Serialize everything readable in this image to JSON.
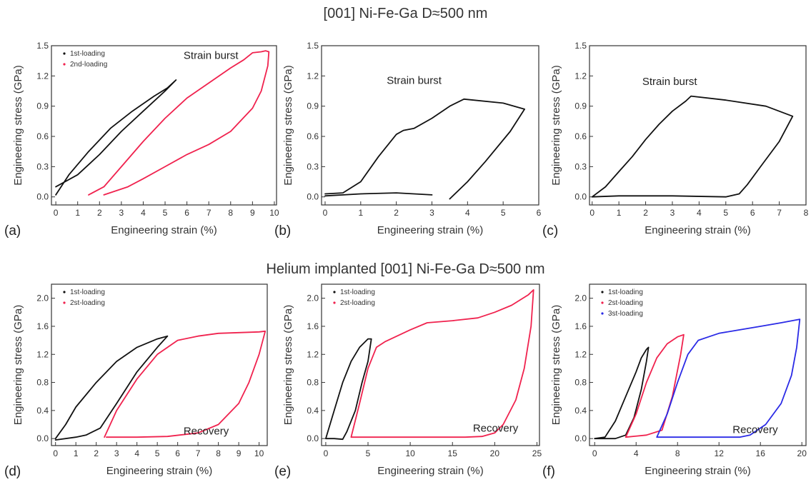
{
  "figure": {
    "top_title": "[001] Ni-Fe-Ga   D≈500 nm",
    "bottom_title": "Helium implanted [001] Ni-Fe-Ga  D≈500 nm"
  },
  "colors": {
    "black": "#111111",
    "red": "#f0224e",
    "blue": "#2a2ae6",
    "axis": "#333333"
  },
  "chart_data": [
    {
      "type": "line",
      "panel": "(a)",
      "xlabel": "Engineering strain (%)",
      "ylabel": "Engineering stress (GPa)",
      "xlim": [
        -0.2,
        10.1
      ],
      "ylim": [
        -0.08,
        1.5
      ],
      "xticks": [
        "0",
        "1",
        "2",
        "3",
        "4",
        "5",
        "6",
        "7",
        "8",
        "9",
        "10"
      ],
      "yticks": [
        "0.0",
        "0.3",
        "0.6",
        "0.9",
        "1.2",
        "1.5"
      ],
      "legend": [
        {
          "label": "1st-loading",
          "color": "#111111"
        },
        {
          "label": "2nd-loading",
          "color": "#f0224e"
        }
      ],
      "annotations": [
        {
          "text": "Strain burst",
          "x": 7.1,
          "y": 1.37
        }
      ],
      "series": [
        {
          "name": "1st-loading",
          "color": "#111111",
          "points": [
            [
              0,
              0.02
            ],
            [
              0.6,
              0.22
            ],
            [
              1.5,
              0.45
            ],
            [
              2.5,
              0.68
            ],
            [
              3.5,
              0.85
            ],
            [
              4.5,
              1.0
            ],
            [
              5.1,
              1.08
            ],
            [
              5.5,
              1.16
            ],
            [
              5.0,
              1.05
            ],
            [
              4.0,
              0.85
            ],
            [
              3.0,
              0.65
            ],
            [
              2.0,
              0.42
            ],
            [
              1.0,
              0.22
            ],
            [
              0,
              0.1
            ]
          ]
        },
        {
          "name": "2nd-loading",
          "color": "#f0224e",
          "points": [
            [
              1.5,
              0.02
            ],
            [
              2.2,
              0.1
            ],
            [
              3.0,
              0.3
            ],
            [
              4.0,
              0.55
            ],
            [
              5.0,
              0.78
            ],
            [
              6.0,
              0.98
            ],
            [
              7.0,
              1.13
            ],
            [
              8.0,
              1.28
            ],
            [
              8.6,
              1.36
            ],
            [
              9.0,
              1.43
            ],
            [
              9.4,
              1.44
            ],
            [
              9.6,
              1.45
            ],
            [
              9.75,
              1.44
            ],
            [
              9.7,
              1.3
            ],
            [
              9.4,
              1.05
            ],
            [
              9.0,
              0.88
            ],
            [
              8.0,
              0.65
            ],
            [
              7.0,
              0.52
            ],
            [
              6.0,
              0.42
            ],
            [
              5.0,
              0.3
            ],
            [
              4.0,
              0.18
            ],
            [
              3.3,
              0.1
            ],
            [
              2.2,
              0.02
            ]
          ]
        }
      ]
    },
    {
      "type": "line",
      "panel": "(b)",
      "xlabel": "Engineering strain (%)",
      "ylabel": "Engineering stress (GPa)",
      "xlim": [
        -0.1,
        6.0
      ],
      "ylim": [
        -0.08,
        1.5
      ],
      "xticks": [
        "0",
        "1",
        "2",
        "3",
        "4",
        "5",
        "6"
      ],
      "yticks": [
        "0.0",
        "0.3",
        "0.6",
        "0.9",
        "1.2",
        "1.5"
      ],
      "legend": [],
      "annotations": [
        {
          "text": "Strain burst",
          "x": 2.5,
          "y": 1.12
        }
      ],
      "series": [
        {
          "name": "",
          "color": "#111111",
          "points": [
            [
              0,
              0.03
            ],
            [
              0.5,
              0.04
            ],
            [
              1.0,
              0.15
            ],
            [
              1.5,
              0.4
            ],
            [
              2.0,
              0.62
            ],
            [
              2.2,
              0.66
            ],
            [
              2.5,
              0.68
            ],
            [
              3.0,
              0.78
            ],
            [
              3.5,
              0.9
            ],
            [
              3.9,
              0.97
            ],
            [
              5.0,
              0.93
            ],
            [
              5.6,
              0.87
            ],
            [
              5.2,
              0.65
            ],
            [
              4.5,
              0.35
            ],
            [
              4.0,
              0.15
            ],
            [
              3.5,
              -0.02
            ]
          ]
        },
        {
          "name": "",
          "color": "#111111",
          "points": [
            [
              0,
              0.01
            ],
            [
              1.0,
              0.03
            ],
            [
              2.0,
              0.04
            ],
            [
              3.0,
              0.02
            ]
          ]
        }
      ]
    },
    {
      "type": "line",
      "panel": "(c)",
      "xlabel": "Engineering strain (%)",
      "ylabel": "Engineering stress (GPa)",
      "xlim": [
        -0.1,
        8.0
      ],
      "ylim": [
        -0.08,
        1.5
      ],
      "xticks": [
        "0",
        "1",
        "2",
        "3",
        "4",
        "5",
        "6",
        "7",
        "8"
      ],
      "yticks": [
        "0.0",
        "0.3",
        "0.6",
        "0.9",
        "1.2",
        "1.5"
      ],
      "legend": [],
      "annotations": [
        {
          "text": "Strain burst",
          "x": 2.9,
          "y": 1.11
        }
      ],
      "series": [
        {
          "name": "",
          "color": "#111111",
          "points": [
            [
              0,
              0.0
            ],
            [
              0.5,
              0.1
            ],
            [
              1.0,
              0.25
            ],
            [
              1.5,
              0.4
            ],
            [
              2.0,
              0.57
            ],
            [
              2.5,
              0.72
            ],
            [
              3.0,
              0.85
            ],
            [
              3.5,
              0.95
            ],
            [
              3.7,
              1.0
            ],
            [
              5.0,
              0.96
            ],
            [
              6.5,
              0.9
            ],
            [
              7.5,
              0.8
            ],
            [
              7.0,
              0.55
            ],
            [
              6.3,
              0.3
            ],
            [
              5.8,
              0.12
            ],
            [
              5.5,
              0.03
            ],
            [
              5.0,
              0.0
            ],
            [
              3.0,
              0.01
            ],
            [
              1.0,
              0.01
            ],
            [
              0,
              0.0
            ]
          ]
        }
      ]
    },
    {
      "type": "line",
      "panel": "(d)",
      "xlabel": "Engineering strain (%)",
      "ylabel": "Engineering stress (GPa)",
      "xlim": [
        -0.2,
        10.4
      ],
      "ylim": [
        -0.1,
        2.2
      ],
      "xticks": [
        "0",
        "1",
        "2",
        "3",
        "4",
        "5",
        "6",
        "7",
        "8",
        "9",
        "10"
      ],
      "yticks": [
        "0.0",
        "0.4",
        "0.8",
        "1.2",
        "1.6",
        "2.0"
      ],
      "legend": [
        {
          "label": "1st-loading",
          "color": "#111111"
        },
        {
          "label": "2st-loading",
          "color": "#f0224e"
        }
      ],
      "annotations": [
        {
          "text": "Recovery",
          "x": 7.4,
          "y": 0.06
        }
      ],
      "series": [
        {
          "name": "1st-loading",
          "color": "#111111",
          "points": [
            [
              0,
              0.0
            ],
            [
              0.5,
              0.2
            ],
            [
              1.0,
              0.45
            ],
            [
              2.0,
              0.8
            ],
            [
              3.0,
              1.1
            ],
            [
              4.0,
              1.3
            ],
            [
              5.0,
              1.42
            ],
            [
              5.5,
              1.46
            ],
            [
              5.0,
              1.3
            ],
            [
              4.0,
              0.95
            ],
            [
              3.0,
              0.5
            ],
            [
              2.2,
              0.15
            ],
            [
              1.5,
              0.05
            ],
            [
              1.0,
              0.02
            ],
            [
              0,
              -0.02
            ]
          ]
        },
        {
          "name": "2st-loading",
          "color": "#f0224e",
          "points": [
            [
              2.4,
              0.02
            ],
            [
              3.0,
              0.4
            ],
            [
              4.0,
              0.85
            ],
            [
              5.0,
              1.2
            ],
            [
              6.0,
              1.4
            ],
            [
              7.0,
              1.46
            ],
            [
              8.0,
              1.5
            ],
            [
              9.0,
              1.51
            ],
            [
              10.0,
              1.52
            ],
            [
              10.3,
              1.53
            ],
            [
              10.0,
              1.2
            ],
            [
              9.5,
              0.8
            ],
            [
              9.0,
              0.5
            ],
            [
              8.0,
              0.2
            ],
            [
              7.0,
              0.08
            ],
            [
              5.5,
              0.03
            ],
            [
              4.0,
              0.02
            ],
            [
              2.5,
              0.02
            ]
          ]
        }
      ]
    },
    {
      "type": "line",
      "panel": "(e)",
      "xlabel": "Engineering strain (%)",
      "ylabel": "Engineering stress (GPa)",
      "xlim": [
        -0.5,
        25.3
      ],
      "ylim": [
        -0.1,
        2.2
      ],
      "xticks": [
        "0",
        "5",
        "10",
        "15",
        "20",
        "25"
      ],
      "yticks": [
        "0.0",
        "0.4",
        "0.8",
        "1.2",
        "1.6",
        "2.0"
      ],
      "legend": [
        {
          "label": "1st-loading",
          "color": "#111111"
        },
        {
          "label": "2st-loading",
          "color": "#f0224e"
        }
      ],
      "annotations": [
        {
          "text": "Recovery",
          "x": 20.1,
          "y": 0.1
        }
      ],
      "series": [
        {
          "name": "1st-loading",
          "color": "#111111",
          "points": [
            [
              0,
              0.0
            ],
            [
              1.0,
              0.4
            ],
            [
              2.0,
              0.8
            ],
            [
              3.0,
              1.1
            ],
            [
              4.0,
              1.3
            ],
            [
              5.0,
              1.42
            ],
            [
              5.4,
              1.42
            ],
            [
              5.0,
              1.1
            ],
            [
              4.3,
              0.8
            ],
            [
              3.5,
              0.4
            ],
            [
              2.5,
              0.1
            ],
            [
              2.0,
              -0.01
            ],
            [
              1.0,
              0.0
            ],
            [
              0,
              0.0
            ]
          ]
        },
        {
          "name": "2st-loading",
          "color": "#f0224e",
          "points": [
            [
              3.0,
              0.02
            ],
            [
              4.0,
              0.5
            ],
            [
              5.0,
              1.0
            ],
            [
              6.0,
              1.3
            ],
            [
              7.0,
              1.38
            ],
            [
              10.0,
              1.55
            ],
            [
              12.0,
              1.65
            ],
            [
              15.0,
              1.68
            ],
            [
              18.0,
              1.72
            ],
            [
              20.0,
              1.8
            ],
            [
              22.0,
              1.9
            ],
            [
              24.0,
              2.05
            ],
            [
              24.6,
              2.12
            ],
            [
              24.3,
              1.6
            ],
            [
              23.5,
              1.0
            ],
            [
              22.5,
              0.55
            ],
            [
              21.0,
              0.2
            ],
            [
              20.0,
              0.08
            ],
            [
              18.5,
              0.03
            ],
            [
              16.5,
              0.02
            ],
            [
              10.0,
              0.02
            ],
            [
              5.0,
              0.02
            ],
            [
              3.0,
              0.02
            ]
          ]
        }
      ]
    },
    {
      "type": "line",
      "panel": "(f)",
      "xlabel": "Engineering strain (%)",
      "ylabel": "Engineering stress (GPa)",
      "xlim": [
        -0.5,
        20.4
      ],
      "ylim": [
        -0.1,
        2.2
      ],
      "xticks": [
        "0",
        "4",
        "8",
        "12",
        "16",
        "20"
      ],
      "yticks": [
        "0.0",
        "0.4",
        "0.8",
        "1.2",
        "1.6",
        "2.0"
      ],
      "legend": [
        {
          "label": "1st-loading",
          "color": "#111111"
        },
        {
          "label": "2st-loading",
          "color": "#f0224e"
        },
        {
          "label": "3st-loading",
          "color": "#2a2ae6"
        }
      ],
      "annotations": [
        {
          "text": "Recovery",
          "x": 15.5,
          "y": 0.08
        }
      ],
      "series": [
        {
          "name": "1st-loading",
          "color": "#111111",
          "points": [
            [
              0,
              0.0
            ],
            [
              1.0,
              0.02
            ],
            [
              2.0,
              0.25
            ],
            [
              3.0,
              0.6
            ],
            [
              4.0,
              0.95
            ],
            [
              4.5,
              1.15
            ],
            [
              5.0,
              1.27
            ],
            [
              5.2,
              1.3
            ],
            [
              5.0,
              1.1
            ],
            [
              4.5,
              0.7
            ],
            [
              3.8,
              0.3
            ],
            [
              3.0,
              0.05
            ],
            [
              2.0,
              0.0
            ],
            [
              1.0,
              0.0
            ],
            [
              0,
              0.0
            ]
          ]
        },
        {
          "name": "2st-loading",
          "color": "#f0224e",
          "points": [
            [
              3.0,
              0.02
            ],
            [
              4.0,
              0.35
            ],
            [
              5.0,
              0.8
            ],
            [
              6.0,
              1.15
            ],
            [
              7.0,
              1.35
            ],
            [
              8.0,
              1.45
            ],
            [
              8.6,
              1.48
            ],
            [
              8.3,
              1.2
            ],
            [
              7.5,
              0.6
            ],
            [
              6.5,
              0.12
            ],
            [
              5.0,
              0.05
            ],
            [
              3.0,
              0.02
            ]
          ]
        },
        {
          "name": "3st-loading",
          "color": "#2a2ae6",
          "points": [
            [
              6.0,
              0.02
            ],
            [
              7.0,
              0.35
            ],
            [
              8.0,
              0.8
            ],
            [
              9.0,
              1.2
            ],
            [
              10.0,
              1.4
            ],
            [
              11.0,
              1.45
            ],
            [
              12.0,
              1.5
            ],
            [
              14.0,
              1.55
            ],
            [
              16.0,
              1.6
            ],
            [
              18.0,
              1.65
            ],
            [
              19.8,
              1.7
            ],
            [
              19.5,
              1.3
            ],
            [
              19.0,
              0.9
            ],
            [
              18.0,
              0.5
            ],
            [
              16.5,
              0.2
            ],
            [
              15.0,
              0.05
            ],
            [
              14.0,
              0.02
            ],
            [
              10.0,
              0.02
            ],
            [
              6.0,
              0.02
            ]
          ]
        }
      ]
    }
  ]
}
